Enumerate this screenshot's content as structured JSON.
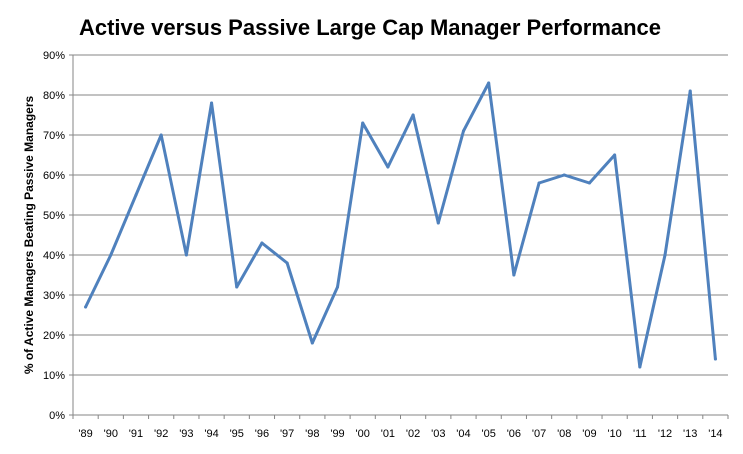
{
  "chart_data": {
    "type": "line",
    "title": "Active versus Passive Large Cap Manager Performance",
    "xlabel": "",
    "ylabel": "% of Active Managers Beating Passive Managers",
    "categories": [
      "'89",
      "'90",
      "'91",
      "'92",
      "'93",
      "'94",
      "'95",
      "'96",
      "'97",
      "'98",
      "'99",
      "'00",
      "'01",
      "'02",
      "'03",
      "'04",
      "'05",
      "'06",
      "'07",
      "'08",
      "'09",
      "'10",
      "'11",
      "'12",
      "'13",
      "'14"
    ],
    "series": [
      {
        "values": [
          27,
          40,
          55,
          70,
          40,
          78,
          32,
          43,
          38,
          18,
          32,
          73,
          62,
          75,
          48,
          71,
          83,
          35,
          58,
          60,
          58,
          65,
          12,
          40,
          81,
          14
        ],
        "color": "#4f81bd"
      }
    ],
    "ylim": [
      0,
      90
    ],
    "yticks": [
      0,
      10,
      20,
      30,
      40,
      50,
      60,
      70,
      80,
      90
    ],
    "ytick_labels": [
      "0%",
      "10%",
      "20%",
      "30%",
      "40%",
      "50%",
      "60%",
      "70%",
      "80%",
      "90%"
    ],
    "grid": true,
    "legend": "none"
  }
}
